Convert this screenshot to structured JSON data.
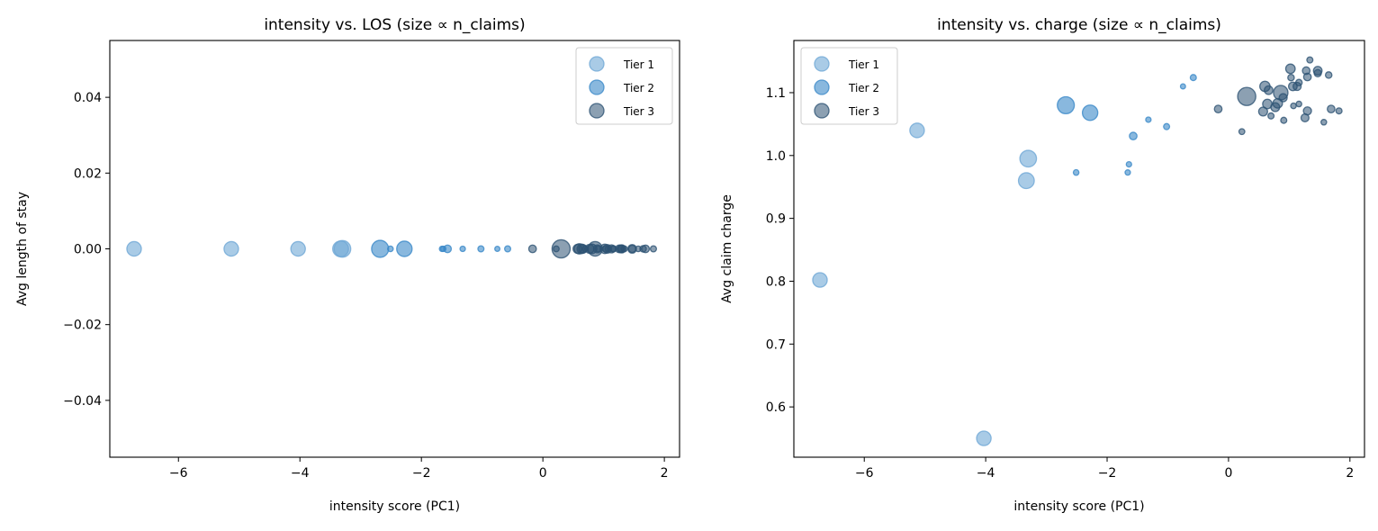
{
  "chart_data": [
    {
      "type": "scatter",
      "title": "intensity vs. LOS (size ∝ n_claims)",
      "xlabel": "intensity score (PC1)",
      "ylabel": "Avg length of stay",
      "xlim": [
        -7.13,
        2.25
      ],
      "ylim": [
        -0.055,
        0.055
      ],
      "xticks": [
        -6,
        -4,
        -2,
        0,
        2
      ],
      "xtick_labels": [
        "−6",
        "−4",
        "−2",
        "0",
        "2"
      ],
      "yticks": [
        -0.04,
        -0.02,
        0.0,
        0.02,
        0.04
      ],
      "ytick_labels": [
        "−0.04",
        "−0.02",
        "0.00",
        "0.02",
        "0.04"
      ],
      "grid": false,
      "legend": "top-right",
      "y_field": "los"
    },
    {
      "type": "scatter",
      "title": "intensity vs. charge (size ∝ n_claims)",
      "xlabel": "intensity score (PC1)",
      "ylabel": "Avg claim charge",
      "xlim": [
        -7.16,
        2.24
      ],
      "ylim": [
        0.52,
        1.183
      ],
      "xticks": [
        -6,
        -4,
        -2,
        0,
        2
      ],
      "xtick_labels": [
        "−6",
        "−4",
        "−2",
        "0",
        "2"
      ],
      "yticks": [
        0.6,
        0.7,
        0.8,
        0.9,
        1.0,
        1.1
      ],
      "ytick_labels": [
        "0.6",
        "0.7",
        "0.8",
        "0.9",
        "1.0",
        "1.1"
      ],
      "grid": false,
      "legend": "top-left",
      "y_field": "charge"
    }
  ],
  "series": [
    {
      "name": "Tier 1",
      "color": "#6fa8d6",
      "alpha": 0.6,
      "points": [
        {
          "x": -6.73,
          "los": 0,
          "charge": 0.802,
          "n": 80
        },
        {
          "x": -5.13,
          "los": 0,
          "charge": 1.04,
          "n": 80
        },
        {
          "x": -4.03,
          "los": 0,
          "charge": 0.55,
          "n": 80
        },
        {
          "x": -3.3,
          "los": 0,
          "charge": 0.995,
          "n": 105
        },
        {
          "x": -3.33,
          "los": 0,
          "charge": 0.96,
          "n": 95
        }
      ]
    },
    {
      "name": "Tier 2",
      "color": "#3a88c8",
      "alpha": 0.6,
      "points": [
        {
          "x": -2.68,
          "los": 0,
          "charge": 1.08,
          "n": 110
        },
        {
          "x": -2.28,
          "los": 0,
          "charge": 1.068,
          "n": 90
        },
        {
          "x": -0.75,
          "los": 0,
          "charge": 1.11,
          "n": 10
        },
        {
          "x": -0.58,
          "los": 0,
          "charge": 1.124,
          "n": 14
        },
        {
          "x": -1.32,
          "los": 0,
          "charge": 1.057,
          "n": 11
        },
        {
          "x": -1.02,
          "los": 0,
          "charge": 1.046,
          "n": 14
        },
        {
          "x": -1.57,
          "los": 0,
          "charge": 1.031,
          "n": 22
        },
        {
          "x": -1.64,
          "los": 0,
          "charge": 0.986,
          "n": 11
        },
        {
          "x": -1.66,
          "los": 0,
          "charge": 0.973,
          "n": 11
        },
        {
          "x": -2.51,
          "los": 0,
          "charge": 0.973,
          "n": 12
        }
      ]
    },
    {
      "name": "Tier 3",
      "color": "#2d5273",
      "alpha": 0.55,
      "points": [
        {
          "x": -0.17,
          "los": 0,
          "charge": 1.074,
          "n": 22
        },
        {
          "x": 0.22,
          "los": 0,
          "charge": 1.038,
          "n": 13
        },
        {
          "x": 0.3,
          "los": 0,
          "charge": 1.094,
          "n": 125
        },
        {
          "x": 0.6,
          "los": 0,
          "charge": 1.11,
          "n": 40
        },
        {
          "x": 0.66,
          "los": 0,
          "charge": 1.104,
          "n": 28
        },
        {
          "x": 0.64,
          "los": 0,
          "charge": 1.082,
          "n": 34
        },
        {
          "x": 0.57,
          "los": 0,
          "charge": 1.07,
          "n": 30
        },
        {
          "x": 0.7,
          "los": 0,
          "charge": 1.063,
          "n": 14
        },
        {
          "x": 0.86,
          "los": 0,
          "charge": 1.1,
          "n": 80
        },
        {
          "x": 0.81,
          "los": 0,
          "charge": 1.083,
          "n": 35
        },
        {
          "x": 0.77,
          "los": 0,
          "charge": 1.077,
          "n": 30
        },
        {
          "x": 0.91,
          "los": 0,
          "charge": 1.056,
          "n": 14
        },
        {
          "x": 0.9,
          "los": 0,
          "charge": 1.092,
          "n": 25
        },
        {
          "x": 1.02,
          "los": 0,
          "charge": 1.138,
          "n": 34
        },
        {
          "x": 1.03,
          "los": 0,
          "charge": 1.124,
          "n": 16
        },
        {
          "x": 1.06,
          "los": 0,
          "charge": 1.11,
          "n": 28
        },
        {
          "x": 1.13,
          "los": 0,
          "charge": 1.11,
          "n": 25
        },
        {
          "x": 1.16,
          "los": 0,
          "charge": 1.116,
          "n": 16
        },
        {
          "x": 1.07,
          "los": 0,
          "charge": 1.079,
          "n": 12
        },
        {
          "x": 1.16,
          "los": 0,
          "charge": 1.082,
          "n": 12
        },
        {
          "x": 1.26,
          "los": 0,
          "charge": 1.06,
          "n": 24
        },
        {
          "x": 1.3,
          "los": 0,
          "charge": 1.071,
          "n": 25
        },
        {
          "x": 1.3,
          "los": 0,
          "charge": 1.125,
          "n": 22
        },
        {
          "x": 1.28,
          "los": 0,
          "charge": 1.135,
          "n": 22
        },
        {
          "x": 1.34,
          "los": 0,
          "charge": 1.152,
          "n": 14
        },
        {
          "x": 1.47,
          "los": 0,
          "charge": 1.135,
          "n": 28
        },
        {
          "x": 1.47,
          "los": 0,
          "charge": 1.131,
          "n": 20
        },
        {
          "x": 1.65,
          "los": 0,
          "charge": 1.128,
          "n": 16
        },
        {
          "x": 1.57,
          "los": 0,
          "charge": 1.053,
          "n": 12
        },
        {
          "x": 1.69,
          "los": 0,
          "charge": 1.074,
          "n": 22
        },
        {
          "x": 1.82,
          "los": 0,
          "charge": 1.071,
          "n": 14
        }
      ]
    }
  ]
}
